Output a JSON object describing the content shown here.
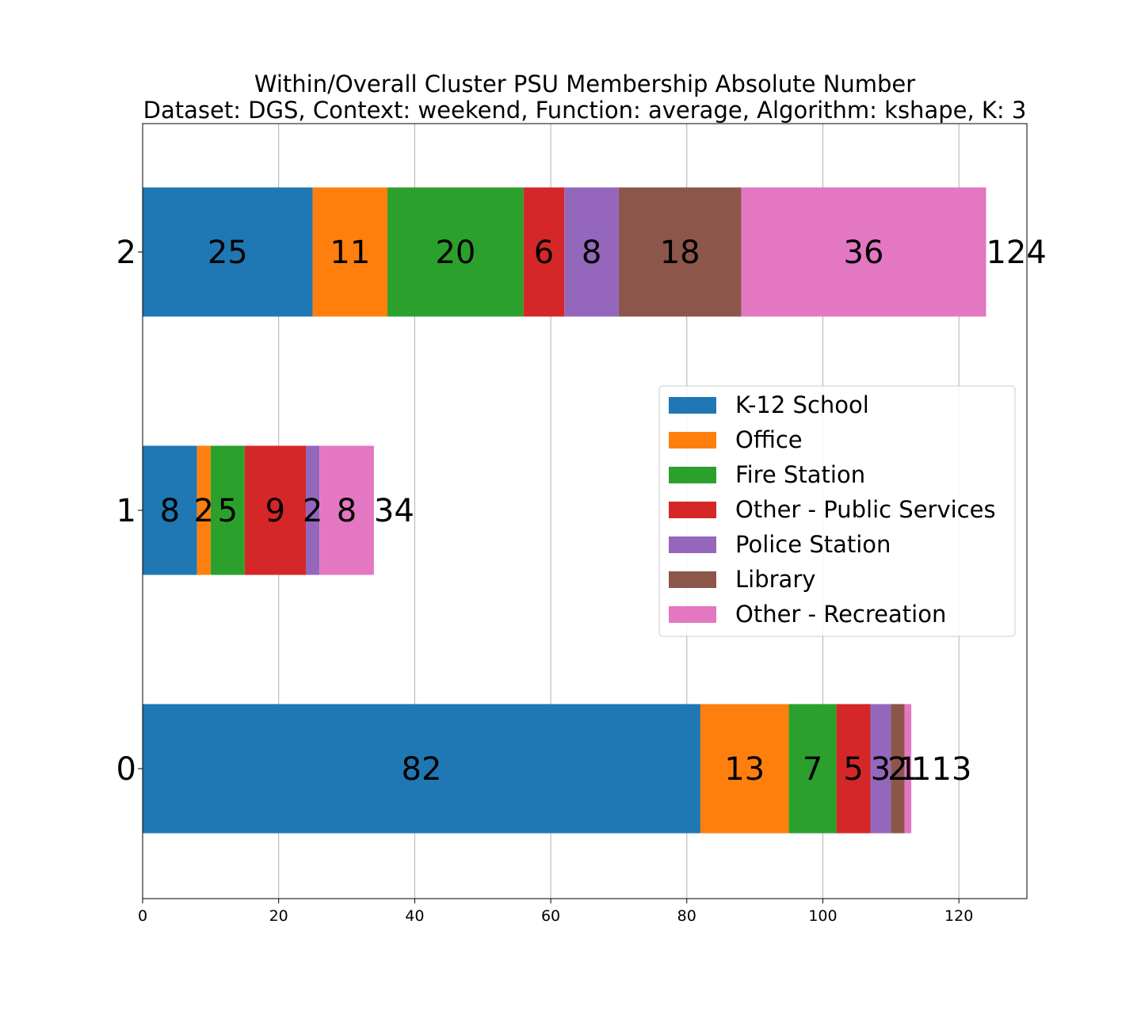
{
  "chart_data": {
    "type": "bar",
    "orientation": "horizontal",
    "stacked": true,
    "title": "Within/Overall Cluster PSU Membership Absolute Number",
    "subtitle": "Dataset: DGS, Context: weekend, Function: average, Algorithm: kshape, K: 3",
    "xlabel": "",
    "ylabel": "",
    "xlim": [
      0,
      130
    ],
    "x_ticks": [
      "0",
      "20",
      "40",
      "60",
      "80",
      "100",
      "120"
    ],
    "categories": [
      "0",
      "1",
      "2"
    ],
    "grid": "x",
    "legend_position": "center-right",
    "series": [
      {
        "name": "K-12 School",
        "color": "#1f77b4",
        "values": [
          82,
          8,
          25
        ]
      },
      {
        "name": "Office",
        "color": "#ff7f0e",
        "values": [
          13,
          2,
          11
        ]
      },
      {
        "name": "Fire Station",
        "color": "#2ca02c",
        "values": [
          7,
          5,
          20
        ]
      },
      {
        "name": "Other - Public Services",
        "color": "#d62728",
        "values": [
          5,
          9,
          6
        ]
      },
      {
        "name": "Police Station",
        "color": "#9467bd",
        "values": [
          3,
          2,
          8
        ]
      },
      {
        "name": "Library",
        "color": "#8c564b",
        "values": [
          2,
          0,
          18
        ]
      },
      {
        "name": "Other - Recreation",
        "color": "#e377c2",
        "values": [
          1,
          8,
          36
        ]
      }
    ],
    "totals": [
      "113",
      "34",
      "124"
    ]
  }
}
